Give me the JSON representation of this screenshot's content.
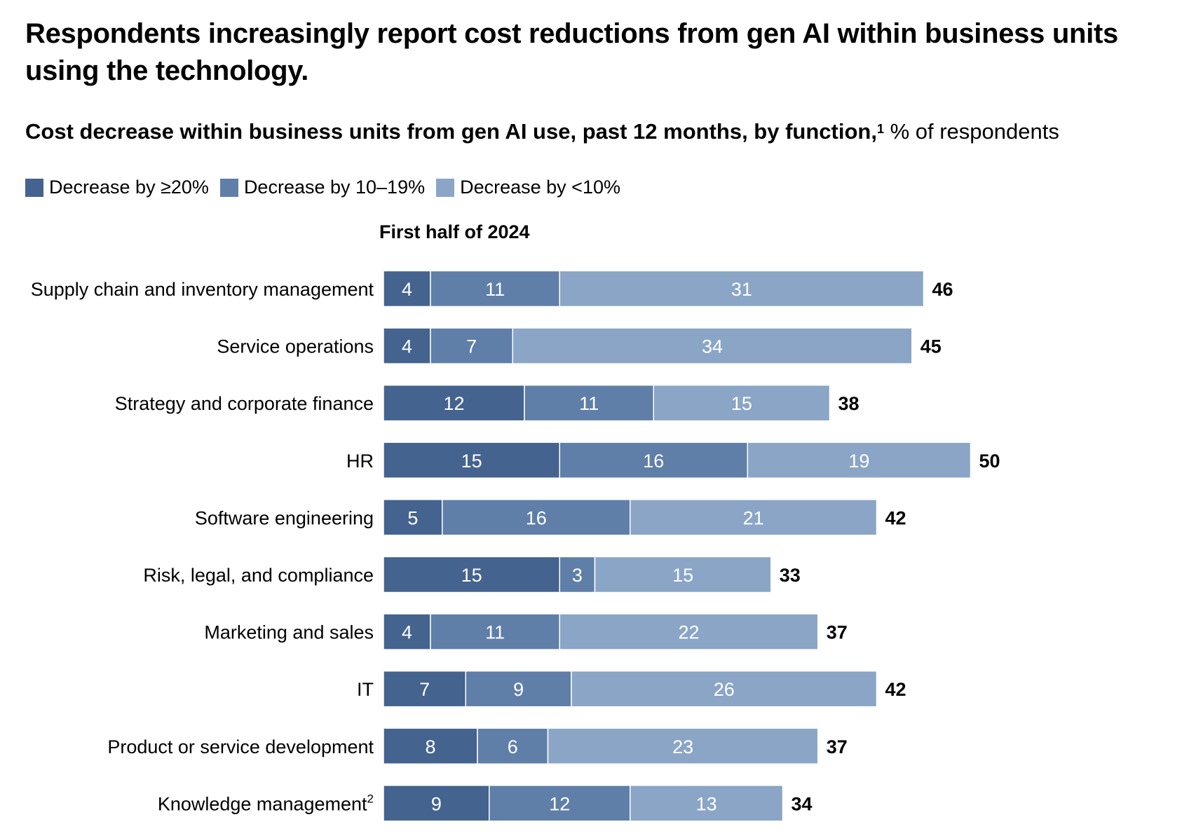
{
  "title": "Respondents increasingly report cost reductions from gen AI within business units using the technology.",
  "subtitle": {
    "main": "Cost decrease within business units from gen AI use, past 12 months, by function,",
    "footnote": "1",
    "unit": "% of respondents"
  },
  "period_label": "First half of 2024",
  "colors": {
    "decrease_20_plus": "#44638f",
    "decrease_10_19": "#5f7fa9",
    "decrease_under_10": "#8aa5c6",
    "label_on_bar": "#ffffff",
    "total_text": "#000000"
  },
  "chart_data": {
    "type": "bar",
    "orientation": "horizontal",
    "stacked": true,
    "categories": [
      "Supply chain and inventory management",
      "Service operations",
      "Strategy and corporate finance",
      "HR",
      "Software engineering",
      "Risk, legal, and compliance",
      "Marketing and sales",
      "IT",
      "Product or service development",
      "Knowledge management"
    ],
    "category_footnotes": [
      "",
      "",
      "",
      "",
      "",
      "",
      "",
      "",
      "",
      "2"
    ],
    "series": [
      {
        "name": "Decrease by ≥20%",
        "values": [
          4,
          4,
          12,
          15,
          5,
          15,
          4,
          7,
          8,
          9
        ]
      },
      {
        "name": "Decrease by 10–19%",
        "values": [
          11,
          7,
          11,
          16,
          16,
          3,
          11,
          9,
          6,
          12
        ]
      },
      {
        "name": "Decrease by <10%",
        "values": [
          31,
          34,
          15,
          19,
          21,
          15,
          22,
          26,
          23,
          13
        ]
      }
    ],
    "totals": [
      46,
      45,
      38,
      50,
      42,
      33,
      37,
      42,
      37,
      34
    ],
    "legend_position": "top-left",
    "grid": false
  }
}
